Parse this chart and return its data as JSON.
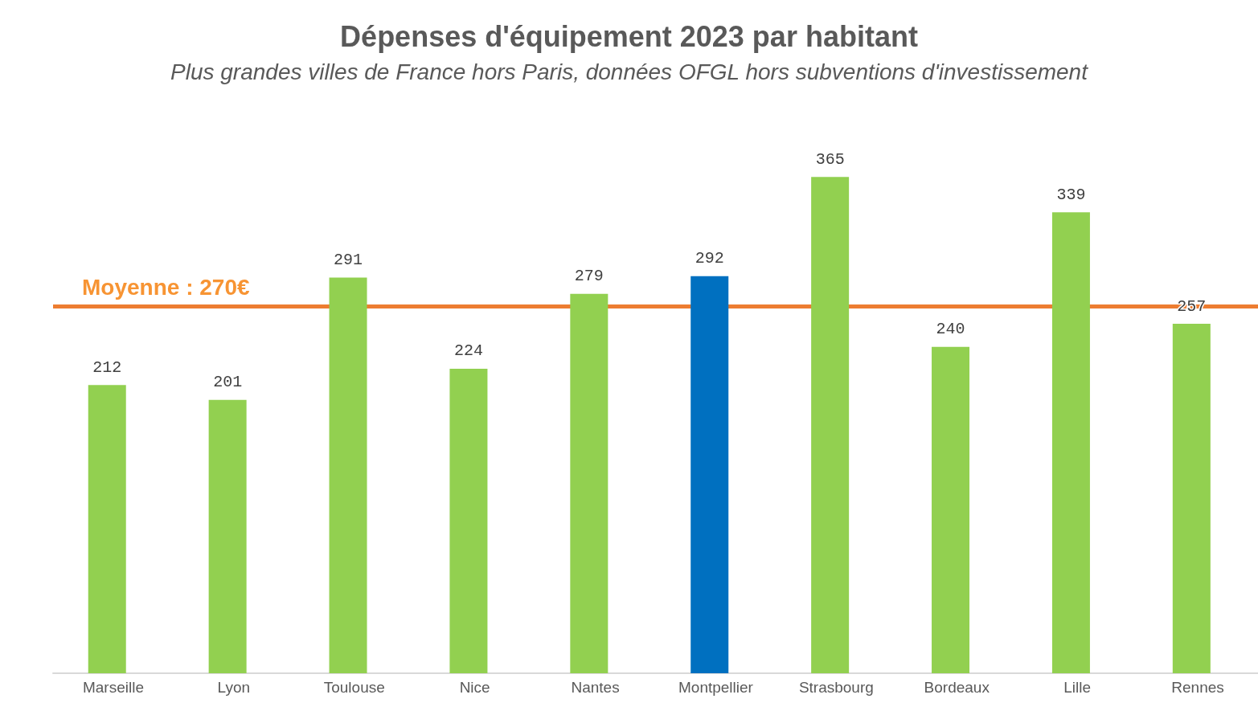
{
  "chart_data": {
    "type": "bar",
    "title": "Dépenses d'équipement 2023 par habitant",
    "subtitle": "Plus grandes villes de France hors Paris, données OFGL hors subventions d'investissement",
    "categories": [
      "Marseille",
      "Lyon",
      "Toulouse",
      "Nice",
      "Nantes",
      "Montpellier",
      "Strasbourg",
      "Bordeaux",
      "Lille",
      "Rennes"
    ],
    "values": [
      212,
      201,
      291,
      224,
      279,
      292,
      365,
      240,
      339,
      257
    ],
    "colors": [
      "#92d050",
      "#92d050",
      "#92d050",
      "#92d050",
      "#92d050",
      "#0070c0",
      "#92d050",
      "#92d050",
      "#92d050",
      "#92d050"
    ],
    "data_labels": true,
    "ref_lines": [
      {
        "axis": "y",
        "value": 270,
        "label": "Moyenne : 270€",
        "color": "#ed7d31",
        "line_style": "solid"
      }
    ]
  }
}
